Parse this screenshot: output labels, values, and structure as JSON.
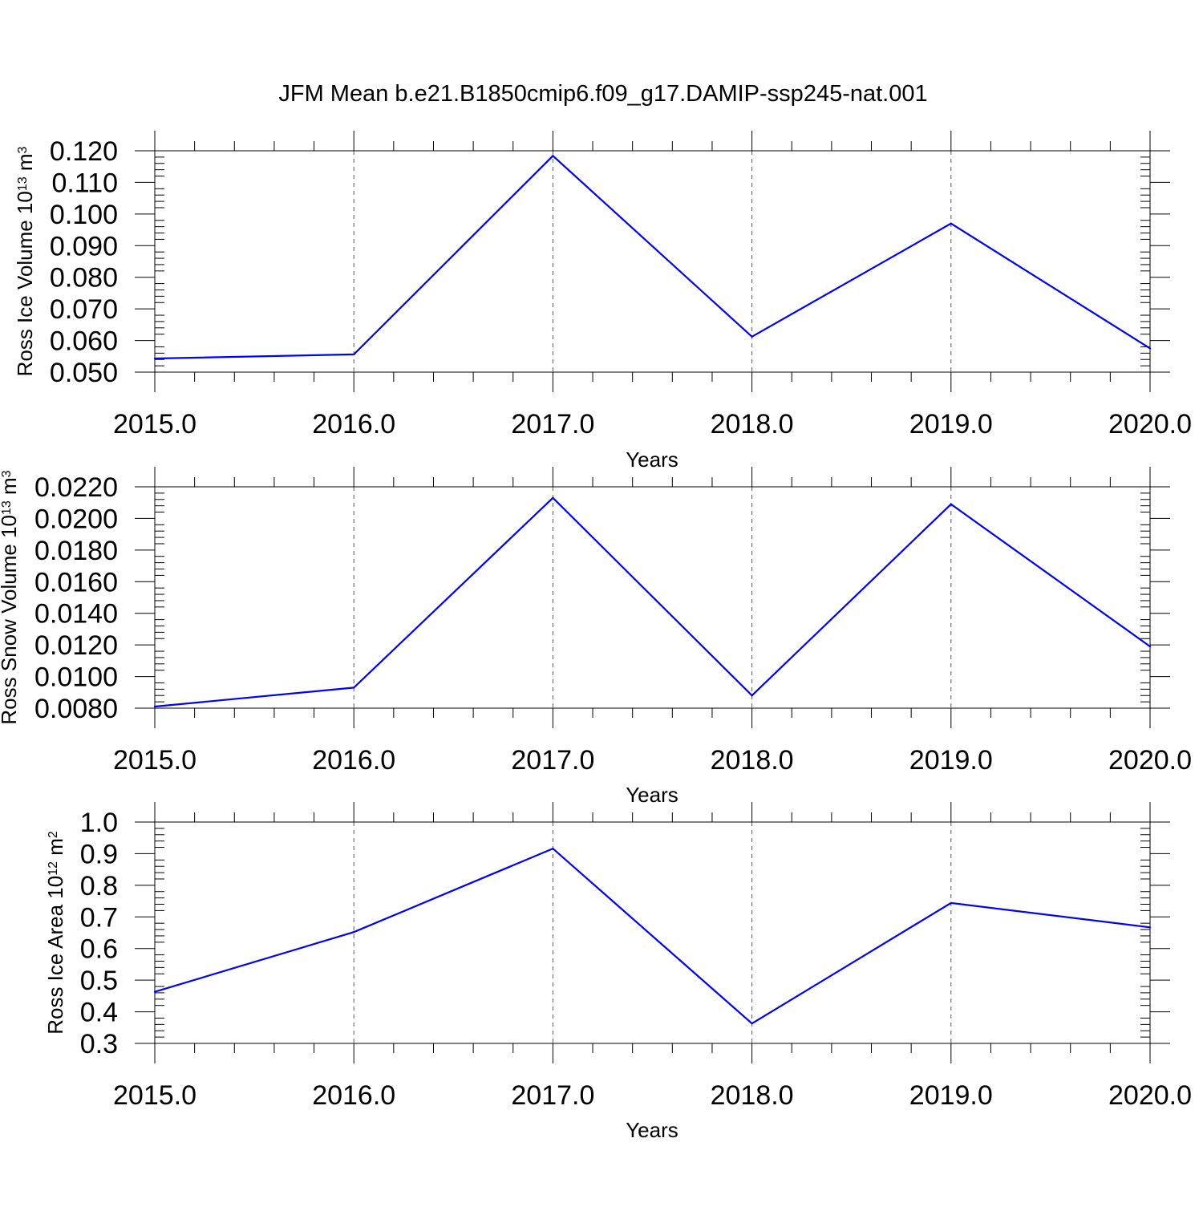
{
  "title": "JFM Mean b.e21.B1850cmip6.f09_g17.DAMIP-ssp245-nat.001",
  "colors": {
    "line": "#0000ff",
    "axis": "#000000",
    "grid": "#555555"
  },
  "chart_data": [
    {
      "type": "line",
      "ylabel": {
        "text": "Ross Ice Volume 10",
        "exp": "13",
        "unit": " m",
        "unit_exp": "3"
      },
      "xlabel": "Years",
      "x": [
        2015,
        2016,
        2017,
        2018,
        2019,
        2020
      ],
      "x_tick_labels": [
        "2015.0",
        "2016.0",
        "2017.0",
        "2018.0",
        "2019.0",
        "2020.0"
      ],
      "series": [
        {
          "values": [
            0.0543,
            0.0556,
            0.1184,
            0.0612,
            0.097,
            0.0575
          ]
        }
      ],
      "y_ticks": [
        0.05,
        0.06,
        0.07,
        0.08,
        0.09,
        0.1,
        0.11,
        0.12
      ],
      "y_tick_labels": [
        "0.050",
        "0.060",
        "0.070",
        "0.080",
        "0.090",
        "0.100",
        "0.110",
        "0.120"
      ],
      "ylim": [
        0.05,
        0.12
      ],
      "xlim": [
        2015,
        2020
      ],
      "grid": "vertical dashed"
    },
    {
      "type": "line",
      "ylabel": {
        "text": "Ross Snow Volume 10",
        "exp": "13",
        "unit": " m",
        "unit_exp": "3"
      },
      "xlabel": "Years",
      "x": [
        2015,
        2016,
        2017,
        2018,
        2019,
        2020
      ],
      "x_tick_labels": [
        "2015.0",
        "2016.0",
        "2017.0",
        "2018.0",
        "2019.0",
        "2020.0"
      ],
      "series": [
        {
          "values": [
            0.0081,
            0.0093,
            0.0213,
            0.0088,
            0.0209,
            0.0119
          ]
        }
      ],
      "y_ticks": [
        0.008,
        0.01,
        0.012,
        0.014,
        0.016,
        0.018,
        0.02,
        0.022
      ],
      "y_tick_labels": [
        "0.0080",
        "0.0100",
        "0.0120",
        "0.0140",
        "0.0160",
        "0.0180",
        "0.0200",
        "0.0220"
      ],
      "ylim": [
        0.008,
        0.022
      ],
      "xlim": [
        2015,
        2020
      ],
      "grid": "vertical dashed"
    },
    {
      "type": "line",
      "ylabel": {
        "text": "Ross Ice Area 10",
        "exp": "12",
        "unit": " m",
        "unit_exp": "2"
      },
      "xlabel": "Years",
      "x": [
        2015,
        2016,
        2017,
        2018,
        2019,
        2020
      ],
      "x_tick_labels": [
        "2015.0",
        "2016.0",
        "2017.0",
        "2018.0",
        "2019.0",
        "2020.0"
      ],
      "series": [
        {
          "values": [
            0.463,
            0.652,
            0.916,
            0.363,
            0.744,
            0.667
          ]
        }
      ],
      "y_ticks": [
        0.3,
        0.4,
        0.5,
        0.6,
        0.7,
        0.8,
        0.9,
        1.0
      ],
      "y_tick_labels": [
        "0.3",
        "0.4",
        "0.5",
        "0.6",
        "0.7",
        "0.8",
        "0.9",
        "1.0"
      ],
      "ylim": [
        0.3,
        1.0
      ],
      "xlim": [
        2015,
        2020
      ],
      "grid": "vertical dashed"
    }
  ]
}
